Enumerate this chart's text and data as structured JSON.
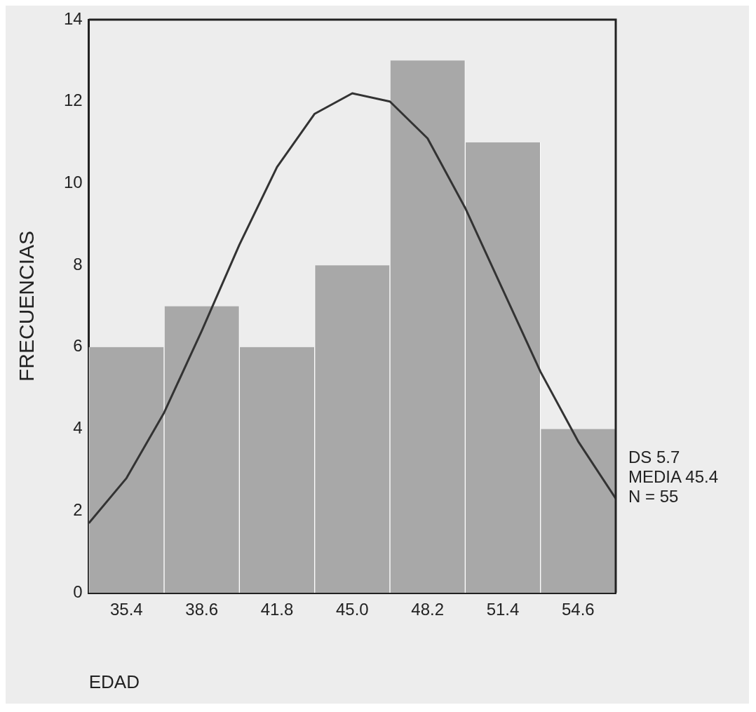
{
  "chart_data": {
    "type": "histogram",
    "xlabel": "EDAD",
    "ylabel": "FRECUENCIAS",
    "bins": [
      33.8,
      37.0,
      40.2,
      43.4,
      46.6,
      49.8,
      53.0,
      56.2
    ],
    "values": [
      6,
      7,
      6,
      8,
      13,
      11,
      4
    ],
    "color": "#a8a8a8",
    "xlim": [
      33.8,
      56.2
    ],
    "xticks": [
      35.4,
      38.6,
      41.8,
      {
        "value": 45,
        "label": "45.0"
      },
      48.2,
      51.4,
      54.6
    ],
    "ylim": [
      0,
      14
    ],
    "yticks": [
      0,
      2,
      4,
      6,
      8,
      10,
      12,
      14
    ],
    "grid": false,
    "legend": false,
    "series": [
      {
        "type": "line",
        "color": "#333333",
        "marker": "none",
        "x": [
          33.8,
          35.4,
          37.0,
          38.6,
          40.2,
          41.8,
          43.4,
          45.0,
          46.6,
          48.2,
          49.8,
          51.4,
          53.0,
          54.6,
          56.2
        ],
        "values": [
          1.7,
          2.8,
          4.4,
          6.4,
          8.5,
          10.4,
          11.7,
          12.2,
          12.0,
          11.1,
          9.4,
          7.4,
          5.4,
          3.7,
          2.3
        ]
      }
    ],
    "annotations": [
      "DS 5.7",
      "MEDIA 45.4",
      "N = 55"
    ]
  }
}
